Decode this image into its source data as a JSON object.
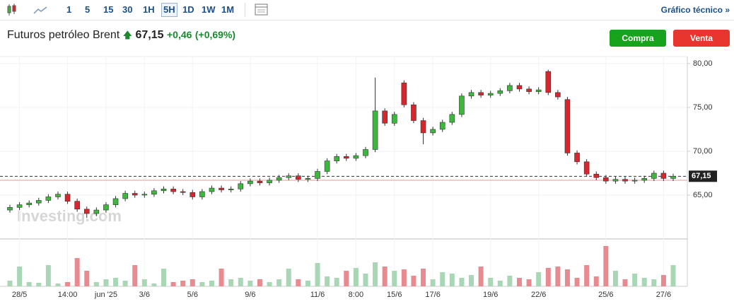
{
  "toolbar": {
    "intervals": [
      "1",
      "5",
      "15",
      "30",
      "1H",
      "5H",
      "1D",
      "1W",
      "1M"
    ],
    "active": "5H",
    "link": "Gráfico técnico »"
  },
  "header": {
    "title": "Futuros petróleo Brent",
    "change": "+0,46",
    "change_pct": "(+0,69%)",
    "buy": "Compra",
    "sell": "Venta"
  },
  "chart_data": {
    "type": "candlestick",
    "watermark": "Investing.com",
    "categories": [
      null,
      "28/5",
      null,
      null,
      null,
      null,
      "14:00",
      null,
      null,
      null,
      "jun '25",
      null,
      null,
      null,
      "3/6",
      null,
      null,
      null,
      null,
      "5/6",
      null,
      null,
      null,
      null,
      null,
      "9/6",
      null,
      null,
      null,
      null,
      null,
      null,
      "11/6",
      null,
      null,
      null,
      "8:00",
      null,
      null,
      null,
      "15/6",
      null,
      null,
      null,
      "17/6",
      null,
      null,
      null,
      null,
      null,
      "19/6",
      null,
      null,
      null,
      null,
      "22/6",
      null,
      null,
      null,
      null,
      null,
      null,
      "25/6",
      null,
      null,
      null,
      null,
      null,
      "27/6",
      null
    ],
    "opens": [
      63.3,
      63.6,
      63.9,
      64.1,
      64.4,
      64.8,
      65.1,
      64.3,
      63.4,
      62.9,
      63.3,
      63.9,
      64.6,
      65.2,
      65.0,
      65.1,
      65.5,
      65.7,
      65.4,
      65.3,
      64.8,
      65.4,
      65.8,
      65.6,
      65.7,
      66.3,
      66.6,
      66.4,
      66.7,
      67.0,
      67.2,
      66.8,
      66.9,
      67.7,
      68.9,
      69.4,
      69.2,
      69.5,
      70.2,
      74.6,
      73.2,
      77.8,
      75.3,
      73.5,
      72.1,
      72.5,
      73.3,
      74.2,
      76.3,
      76.7,
      76.4,
      76.6,
      76.9,
      77.5,
      77.1,
      76.8,
      79.1,
      76.7,
      75.9,
      69.8,
      68.8,
      67.4,
      67.0,
      66.6,
      66.8,
      66.6,
      66.7,
      66.9,
      67.5,
      66.9
    ],
    "highs": [
      63.9,
      64.2,
      64.4,
      64.7,
      65.1,
      65.4,
      65.4,
      64.6,
      63.7,
      63.6,
      64.2,
      64.9,
      65.5,
      65.5,
      65.4,
      65.8,
      66.0,
      66.0,
      65.7,
      65.6,
      65.7,
      66.1,
      66.1,
      66.0,
      66.6,
      66.9,
      66.9,
      67.0,
      67.3,
      67.5,
      67.5,
      67.2,
      68.0,
      69.2,
      69.7,
      69.7,
      69.8,
      70.5,
      78.4,
      74.9,
      74.5,
      78.1,
      75.6,
      73.8,
      72.8,
      73.6,
      74.5,
      76.6,
      77.0,
      77.0,
      76.9,
      77.2,
      77.8,
      77.8,
      77.4,
      77.3,
      79.3,
      77.0,
      76.2,
      70.1,
      69.1,
      67.7,
      67.3,
      67.1,
      67.1,
      67.0,
      67.2,
      67.8,
      67.8,
      67.45
    ],
    "lows": [
      63.0,
      63.3,
      63.6,
      63.8,
      64.1,
      64.5,
      64.0,
      63.1,
      62.4,
      62.6,
      63.0,
      63.6,
      64.3,
      64.7,
      64.7,
      64.8,
      65.2,
      65.1,
      65.0,
      64.5,
      64.5,
      65.1,
      65.3,
      65.3,
      65.4,
      66.0,
      66.1,
      66.1,
      66.4,
      66.7,
      66.5,
      66.5,
      66.6,
      67.4,
      68.6,
      68.9,
      68.9,
      69.2,
      69.9,
      72.9,
      72.9,
      75.0,
      73.2,
      70.8,
      71.8,
      72.2,
      73.0,
      73.9,
      76.0,
      76.1,
      76.1,
      76.3,
      76.6,
      76.8,
      76.5,
      76.5,
      76.4,
      75.9,
      69.5,
      68.5,
      67.1,
      66.7,
      66.3,
      66.3,
      66.3,
      66.3,
      66.4,
      66.6,
      66.6,
      66.6
    ],
    "closes": [
      63.6,
      63.9,
      64.1,
      64.4,
      64.8,
      65.1,
      64.3,
      63.4,
      62.9,
      63.3,
      63.9,
      64.6,
      65.2,
      65.0,
      65.1,
      65.5,
      65.7,
      65.4,
      65.3,
      64.8,
      65.4,
      65.8,
      65.6,
      65.7,
      66.3,
      66.6,
      66.4,
      66.7,
      67.0,
      67.2,
      66.8,
      66.9,
      67.7,
      68.9,
      69.4,
      69.2,
      69.5,
      70.2,
      74.6,
      73.2,
      74.2,
      75.3,
      73.5,
      72.1,
      72.5,
      73.3,
      74.2,
      76.3,
      76.7,
      76.4,
      76.6,
      76.9,
      77.5,
      77.1,
      76.8,
      77.0,
      76.7,
      76.2,
      69.8,
      68.8,
      67.4,
      67.0,
      66.6,
      66.8,
      66.6,
      66.7,
      66.9,
      67.5,
      66.9,
      67.15
    ],
    "volumes": [
      8,
      28,
      6,
      5,
      30,
      4,
      6,
      40,
      22,
      6,
      10,
      12,
      8,
      30,
      10,
      4,
      25,
      6,
      8,
      10,
      6,
      8,
      25,
      10,
      12,
      8,
      10,
      6,
      10,
      25,
      10,
      8,
      33,
      14,
      12,
      22,
      26,
      18,
      34,
      28,
      22,
      24,
      15,
      25,
      10,
      20,
      18,
      12,
      16,
      28,
      12,
      8,
      15,
      12,
      10,
      20,
      26,
      28,
      24,
      12,
      30,
      14,
      57,
      22,
      10,
      18,
      12,
      10,
      16,
      30
    ],
    "volume_lim": [
      0,
      60
    ],
    "ylim": [
      60,
      80.8
    ],
    "yticks": [
      {
        "value": 65,
        "label": "65,00"
      },
      {
        "value": 70,
        "label": "70,00"
      },
      {
        "value": 75,
        "label": "75,00"
      },
      {
        "value": 80,
        "label": "80,00"
      }
    ],
    "last_price": {
      "value": 67.15,
      "label": "67,15"
    },
    "prev_close": 66.69,
    "up_color": "#3cb93c",
    "down_color": "#d8262e",
    "up_volume_color": "#a9d7b6",
    "down_volume_color": "#e78b90",
    "grid": true
  }
}
